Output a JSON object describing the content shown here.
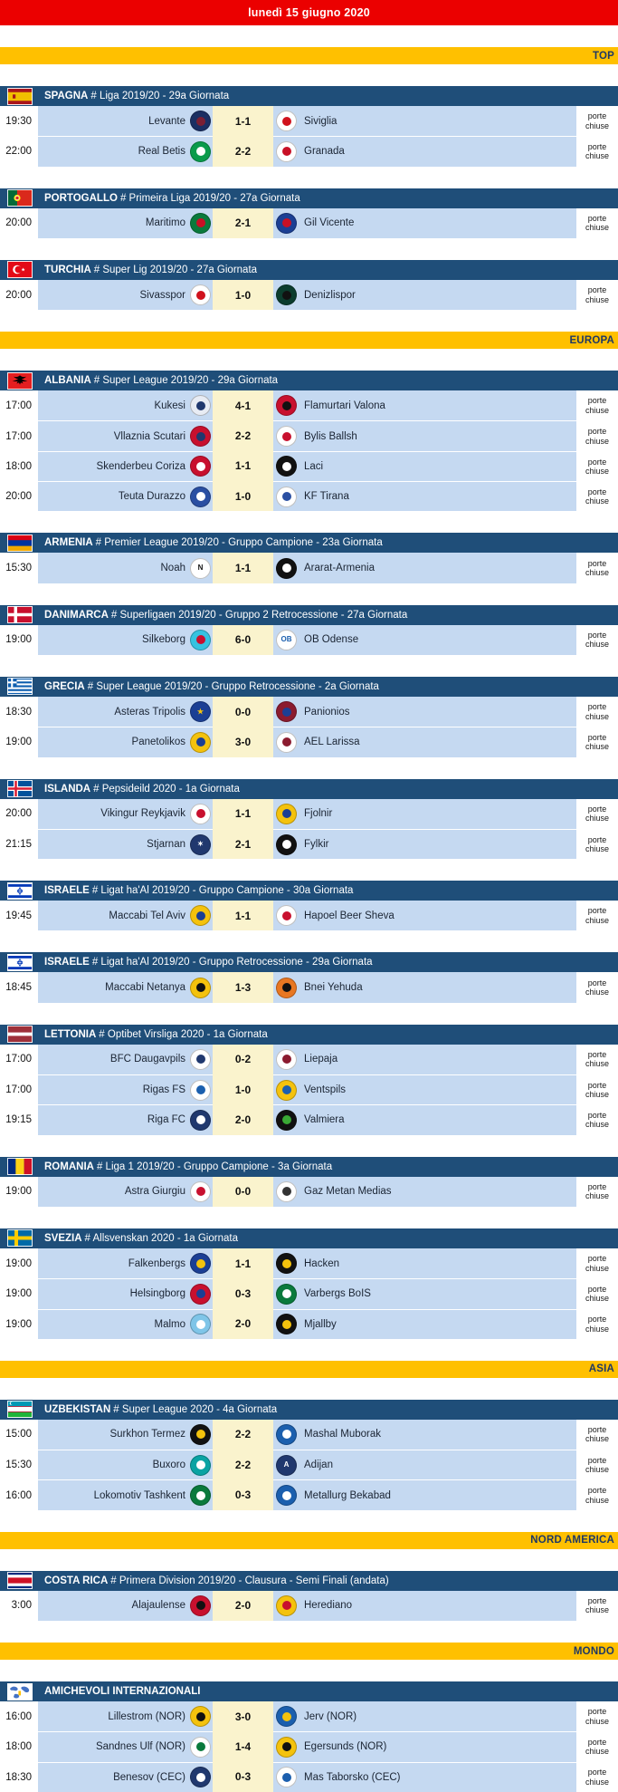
{
  "header": {
    "date": "lunedì 15 giugno 2020"
  },
  "labels": {
    "closed_doors": "porte chiuse"
  },
  "colors": {
    "header-red": "#EB0000",
    "banner-gold": "#FFC000",
    "banner-text": "#1F3864",
    "league-blue": "#1F4E79",
    "row-blue": "#C5D9F1",
    "score-cream": "#FAF3CD",
    "text-dark": "#1A2433"
  },
  "sections": [
    {
      "kind": "banner",
      "label": "TOP"
    },
    {
      "kind": "league",
      "flag": "es",
      "country": "SPAGNA",
      "competition": "# Liga 2019/20 - 29a Giornata",
      "matches": [
        {
          "time": "19:30",
          "home": "Levante",
          "hl": [
            "#1B2F63",
            "#7A1F34"
          ],
          "score": "1-1",
          "away": "Siviglia",
          "al": [
            "#FFFFFF",
            "#D0121C"
          ]
        },
        {
          "time": "22:00",
          "home": "Real Betis",
          "hl": [
            "#0A9B4B",
            "#FFFFFF"
          ],
          "score": "2-2",
          "away": "Granada",
          "al": [
            "#FFFFFF",
            "#C81025"
          ]
        }
      ]
    },
    {
      "kind": "league",
      "flag": "pt",
      "country": "PORTOGALLO",
      "competition": "# Primeira Liga 2019/20 - 27a Giornata",
      "matches": [
        {
          "time": "20:00",
          "home": "Maritimo",
          "hl": [
            "#0A7A3C",
            "#C81025"
          ],
          "score": "2-1",
          "away": "Gil Vicente",
          "al": [
            "#1B3F94",
            "#C81025"
          ]
        }
      ]
    },
    {
      "kind": "league",
      "flag": "tr",
      "country": "TURCHIA",
      "competition": "# Super Lig 2019/20 - 27a Giornata",
      "matches": [
        {
          "time": "20:00",
          "home": "Sivasspor",
          "hl": [
            "#FFFFFF",
            "#D0121C"
          ],
          "score": "1-0",
          "away": "Denizlispor",
          "al": [
            "#0B3D2E",
            "#111111"
          ]
        }
      ]
    },
    {
      "kind": "banner",
      "label": "EUROPA"
    },
    {
      "kind": "league",
      "flag": "al",
      "country": "ALBANIA",
      "competition": "# Super League 2019/20 - 29a Giornata",
      "matches": [
        {
          "time": "17:00",
          "home": "Kukesi",
          "hl": [
            "#E8ECF4",
            "#20386E"
          ],
          "score": "4-1",
          "away": "Flamurtari Valona",
          "al": [
            "#C8102E",
            "#111111"
          ]
        },
        {
          "time": "17:00",
          "home": "Vllaznia Scutari",
          "hl": [
            "#C8102E",
            "#20386E"
          ],
          "score": "2-2",
          "away": "Bylis Ballsh",
          "al": [
            "#FFFFFF",
            "#C8102E"
          ]
        },
        {
          "time": "18:00",
          "home": "Skenderbeu Coriza",
          "hl": [
            "#C8102E",
            "#FFFFFF"
          ],
          "score": "1-1",
          "away": "Laci",
          "al": [
            "#111111",
            "#FFFFFF"
          ]
        },
        {
          "time": "20:00",
          "home": "Teuta Durazzo",
          "hl": [
            "#2A4FA2",
            "#FFFFFF"
          ],
          "score": "1-0",
          "away": "KF Tirana",
          "al": [
            "#FFFFFF",
            "#2A4FA2"
          ]
        }
      ]
    },
    {
      "kind": "league",
      "flag": "am",
      "country": "ARMENIA",
      "competition": "# Premier League 2019/20 - Gruppo Campione - 23a Giornata",
      "matches": [
        {
          "time": "15:30",
          "home": "Noah",
          "hl": [
            "#FFFFFF",
            "#111111",
            "N"
          ],
          "score": "1-1",
          "away": "Ararat-Armenia",
          "al": [
            "#111111",
            "#FFFFFF"
          ]
        }
      ]
    },
    {
      "kind": "league",
      "flag": "dk",
      "country": "DANIMARCA",
      "competition": "# Superligaen 2019/20 - Gruppo 2 Retrocessione - 27a Giornata",
      "matches": [
        {
          "time": "19:00",
          "home": "Silkeborg",
          "hl": [
            "#35C3E0",
            "#C8102E"
          ],
          "score": "6-0",
          "away": "OB Odense",
          "al": [
            "#FFFFFF",
            "#1B5FAE",
            "OB"
          ]
        }
      ]
    },
    {
      "kind": "league",
      "flag": "gr",
      "country": "GRECIA",
      "competition": "# Super League 2019/20 - Gruppo Retrocessione - 2a Giornata",
      "matches": [
        {
          "time": "18:30",
          "home": "Asteras Tripolis",
          "hl": [
            "#1B3F94",
            "#F4C20D",
            "★"
          ],
          "score": "0-0",
          "away": "Panionios",
          "al": [
            "#8B1B2F",
            "#1B3F94"
          ]
        },
        {
          "time": "19:00",
          "home": "Panetolikos",
          "hl": [
            "#F4C20D",
            "#1B3F94"
          ],
          "score": "3-0",
          "away": "AEL Larissa",
          "al": [
            "#FFFFFF",
            "#8B1B2F"
          ]
        }
      ]
    },
    {
      "kind": "league",
      "flag": "is",
      "country": "ISLANDA",
      "competition": "# Pepsideild 2020 - 1a Giornata",
      "matches": [
        {
          "time": "20:00",
          "home": "Vikingur Reykjavik",
          "hl": [
            "#FFFFFF",
            "#C8102E"
          ],
          "score": "1-1",
          "away": "Fjolnir",
          "al": [
            "#F4C20D",
            "#1B3F94"
          ]
        },
        {
          "time": "21:15",
          "home": "Stjarnan",
          "hl": [
            "#20386E",
            "#FFFFFF",
            "✶"
          ],
          "score": "2-1",
          "away": "Fylkir",
          "al": [
            "#111111",
            "#FFFFFF"
          ]
        }
      ]
    },
    {
      "kind": "league",
      "flag": "il",
      "country": "ISRAELE",
      "competition": "# Ligat ha'Al 2019/20 - Gruppo Campione - 30a Giornata",
      "matches": [
        {
          "time": "19:45",
          "home": "Maccabi Tel Aviv",
          "hl": [
            "#F4C20D",
            "#1B3F94"
          ],
          "score": "1-1",
          "away": "Hapoel Beer Sheva",
          "al": [
            "#FFFFFF",
            "#C8102E"
          ]
        }
      ]
    },
    {
      "kind": "league",
      "flag": "il",
      "country": "ISRAELE",
      "competition": "# Ligat ha'Al 2019/20 - Gruppo Retrocessione - 29a Giornata",
      "matches": [
        {
          "time": "18:45",
          "home": "Maccabi Netanya",
          "hl": [
            "#F4C20D",
            "#111111"
          ],
          "score": "1-3",
          "away": "Bnei Yehuda",
          "al": [
            "#E87722",
            "#111111"
          ]
        }
      ]
    },
    {
      "kind": "league",
      "flag": "lv",
      "country": "LETTONIA",
      "competition": "# Optibet Virsliga 2020 - 1a Giornata",
      "matches": [
        {
          "time": "17:00",
          "home": "BFC Daugavpils",
          "hl": [
            "#FFFFFF",
            "#20386E"
          ],
          "score": "0-2",
          "away": "Liepaja",
          "al": [
            "#FFFFFF",
            "#8B1B2F"
          ]
        },
        {
          "time": "17:00",
          "home": "Rigas FS",
          "hl": [
            "#FFFFFF",
            "#1B5FAE"
          ],
          "score": "1-0",
          "away": "Ventspils",
          "al": [
            "#F4C20D",
            "#1B5FAE"
          ]
        },
        {
          "time": "19:15",
          "home": "Riga FC",
          "hl": [
            "#20386E",
            "#FFFFFF"
          ],
          "score": "2-0",
          "away": "Valmiera",
          "al": [
            "#111111",
            "#3AA935"
          ]
        }
      ]
    },
    {
      "kind": "league",
      "flag": "ro",
      "country": "ROMANIA",
      "competition": "# Liga 1 2019/20 - Gruppo Campione - 3a Giornata",
      "matches": [
        {
          "time": "19:00",
          "home": "Astra Giurgiu",
          "hl": [
            "#FFFFFF",
            "#C8102E"
          ],
          "score": "0-0",
          "away": "Gaz Metan Medias",
          "al": [
            "#FFFFFF",
            "#333333"
          ]
        }
      ]
    },
    {
      "kind": "league",
      "flag": "se",
      "country": "SVEZIA",
      "competition": "# Allsvenskan 2020 - 1a Giornata",
      "matches": [
        {
          "time": "19:00",
          "home": "Falkenbergs",
          "hl": [
            "#1B3F94",
            "#F4C20D"
          ],
          "score": "1-1",
          "away": "Hacken",
          "al": [
            "#111111",
            "#F4C20D"
          ]
        },
        {
          "time": "19:00",
          "home": "Helsingborg",
          "hl": [
            "#C8102E",
            "#1B3F94"
          ],
          "score": "0-3",
          "away": "Varbergs BoIS",
          "al": [
            "#0A7A3C",
            "#FFFFFF"
          ]
        },
        {
          "time": "19:00",
          "home": "Malmo",
          "hl": [
            "#7FC5E8",
            "#FFFFFF"
          ],
          "score": "2-0",
          "away": "Mjallby",
          "al": [
            "#111111",
            "#F4C20D"
          ]
        }
      ]
    },
    {
      "kind": "banner",
      "label": "ASIA"
    },
    {
      "kind": "league",
      "flag": "uz",
      "country": "UZBEKISTAN",
      "competition": "# Super League 2020 - 4a Giornata",
      "matches": [
        {
          "time": "15:00",
          "home": "Surkhon Termez",
          "hl": [
            "#111111",
            "#F4C20D"
          ],
          "score": "2-2",
          "away": "Mashal Muborak",
          "al": [
            "#1B5FAE",
            "#FFFFFF"
          ]
        },
        {
          "time": "15:30",
          "home": "Buxoro",
          "hl": [
            "#0AA3A3",
            "#FFFFFF"
          ],
          "score": "2-2",
          "away": "Adijan",
          "al": [
            "#20386E",
            "#FFFFFF",
            "A"
          ]
        },
        {
          "time": "16:00",
          "home": "Lokomotiv Tashkent",
          "hl": [
            "#0A7A3C",
            "#FFFFFF"
          ],
          "score": "0-3",
          "away": "Metallurg Bekabad",
          "al": [
            "#1B5FAE",
            "#FFFFFF"
          ]
        }
      ]
    },
    {
      "kind": "banner",
      "label": "NORD AMERICA"
    },
    {
      "kind": "league",
      "flag": "cr",
      "country": "COSTA RICA",
      "competition": "# Primera Division 2019/20 - Clausura - Semi Finali (andata)",
      "matches": [
        {
          "time": "3:00",
          "home": "Alajaulense",
          "hl": [
            "#C8102E",
            "#111111"
          ],
          "score": "2-0",
          "away": "Herediano",
          "al": [
            "#F4C20D",
            "#C8102E"
          ]
        }
      ]
    },
    {
      "kind": "banner",
      "label": "MONDO"
    },
    {
      "kind": "league",
      "flag": "world",
      "country": "AMICHEVOLI INTERNAZIONALI",
      "competition": "",
      "matches": [
        {
          "time": "16:00",
          "home": "Lillestrom (NOR)",
          "hl": [
            "#F4C20D",
            "#111111"
          ],
          "score": "3-0",
          "away": "Jerv (NOR)",
          "al": [
            "#1B5FAE",
            "#F4C20D"
          ]
        },
        {
          "time": "18:00",
          "home": "Sandnes Ulf (NOR)",
          "hl": [
            "#FFFFFF",
            "#0A7A3C"
          ],
          "score": "1-4",
          "away": "Egersunds (NOR)",
          "al": [
            "#F4C20D",
            "#111111"
          ]
        },
        {
          "time": "18:30",
          "home": "Benesov (CEC)",
          "hl": [
            "#20386E",
            "#FFFFFF"
          ],
          "score": "0-3",
          "away": "Mas Taborsko (CEC)",
          "al": [
            "#FFFFFF",
            "#1B5FAE"
          ]
        }
      ]
    }
  ]
}
